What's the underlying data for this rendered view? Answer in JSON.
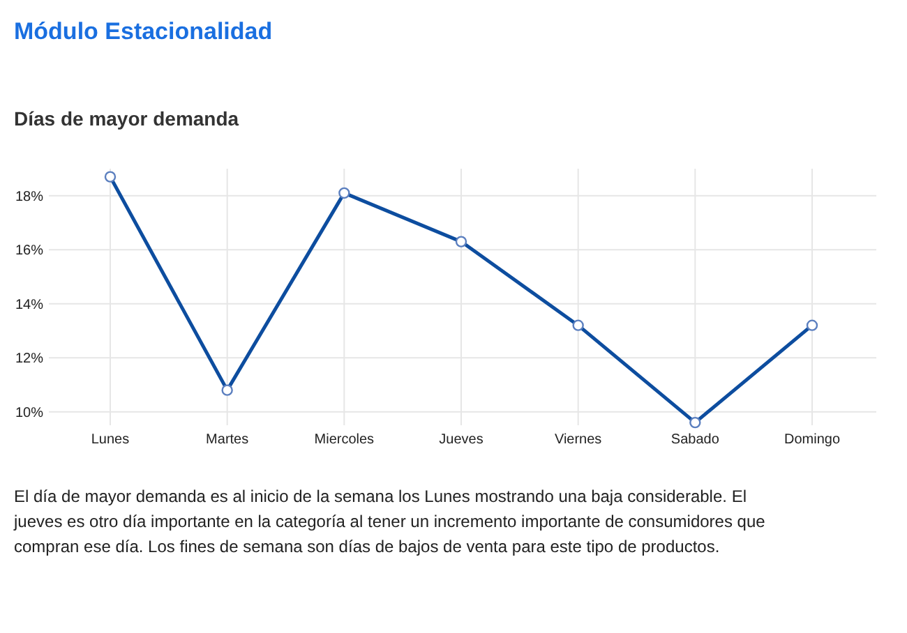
{
  "chart_data": {
    "type": "line",
    "title": "Módulo Estacionalidad",
    "subtitle": "Días de mayor demanda",
    "categories": [
      "Lunes",
      "Martes",
      "Miercoles",
      "Jueves",
      "Viernes",
      "Sabado",
      "Domingo"
    ],
    "series": [
      {
        "color": "#0d4d9f",
        "values": [
          18.7,
          10.8,
          18.1,
          16.3,
          13.2,
          9.6,
          13.2
        ]
      }
    ],
    "ylim": [
      9.5,
      19
    ],
    "yticks": [
      {
        "value": 10,
        "label": "10%"
      },
      {
        "value": 12,
        "label": "12%"
      },
      {
        "value": 14,
        "label": "14%"
      },
      {
        "value": 16,
        "label": "16%"
      },
      {
        "value": 18,
        "label": "18%"
      }
    ],
    "grid": true,
    "marker": "circle",
    "line_style": "solid",
    "annotations": [
      "El día de mayor demanda es al inicio de la semana los Lunes mostrando una baja considerable. El jueves es otro día importante en la categoría al tener un incremento importante de consumidores que compran ese día. Los fines de semana son días de bajos de venta para este tipo de productos."
    ]
  }
}
